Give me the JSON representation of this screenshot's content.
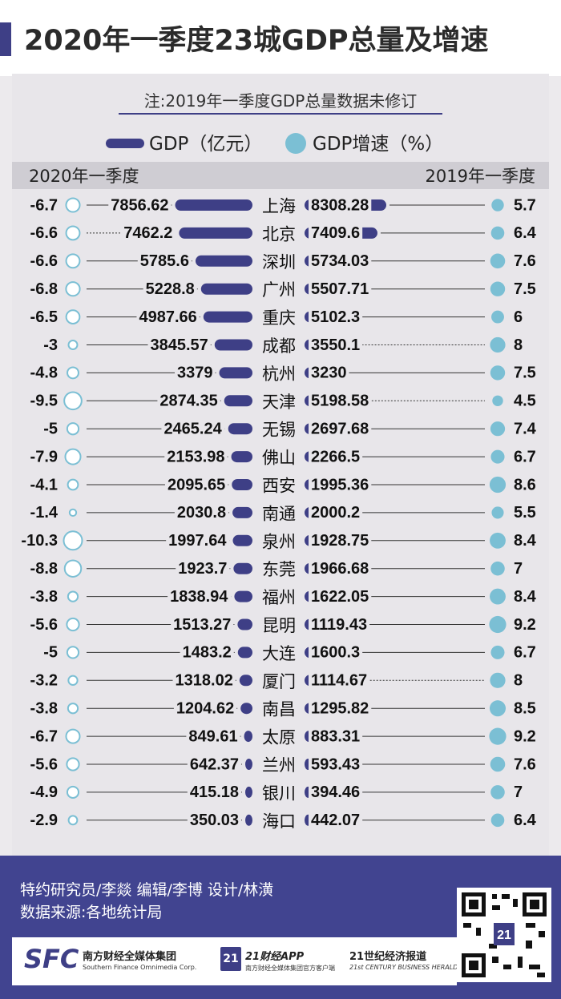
{
  "title": "2020年一季度23城GDP总量及增速",
  "note": "注:2019年一季度GDP总量数据未修订",
  "legend": {
    "gdp": "GDP（亿元）",
    "growth": "GDP增速（%）"
  },
  "header": {
    "left": "2020年一季度",
    "right": "2019年一季度"
  },
  "colors": {
    "bar": "#3e3f86",
    "dot_2019": "#7bbfd4",
    "ring_2020": "#7bbfd4"
  },
  "chart_data": {
    "type": "bar",
    "categories": [
      "上海",
      "北京",
      "深圳",
      "广州",
      "重庆",
      "成都",
      "杭州",
      "天津",
      "无锡",
      "佛山",
      "西安",
      "南通",
      "泉州",
      "东莞",
      "福州",
      "昆明",
      "大连",
      "厦门",
      "南昌",
      "太原",
      "兰州",
      "银川",
      "海口"
    ],
    "series": [
      {
        "name": "2020年一季度",
        "gdp": [
          7856.62,
          7462.2,
          5785.6,
          5228.8,
          4987.66,
          3845.57,
          3379,
          2874.35,
          2465.24,
          2153.98,
          2095.65,
          2030.8,
          1997.64,
          1923.7,
          1838.94,
          1513.27,
          1483.2,
          1318.02,
          1204.62,
          849.61,
          642.37,
          415.18,
          350.03
        ],
        "growth": [
          -6.7,
          -6.6,
          -6.6,
          -6.8,
          -6.5,
          -3,
          -4.8,
          -9.5,
          -5,
          -7.9,
          -4.1,
          -1.4,
          -10.3,
          -8.8,
          -3.8,
          -5.6,
          -5,
          -3.2,
          -3.8,
          -6.7,
          -5.6,
          -4.9,
          -2.9
        ],
        "gdp_labels": [
          "7856.62",
          "7462.2",
          "5785.6",
          "5228.8",
          "4987.66",
          "3845.57",
          "3379",
          "2874.35",
          "2465.24",
          "2153.98",
          "2095.65",
          "2030.8",
          "1997.64",
          "1923.7",
          "1838.94",
          "1513.27",
          "1483.2",
          "1318.02",
          "1204.62",
          "849.61",
          "642.37",
          "415.18",
          "350.03"
        ]
      },
      {
        "name": "2019年一季度",
        "gdp": [
          8308.28,
          7409.6,
          5734.03,
          5507.71,
          5102.3,
          3550.1,
          3230,
          5198.58,
          2697.68,
          2266.5,
          1995.36,
          2000.2,
          1928.75,
          1966.68,
          1622.05,
          1119.43,
          1600.3,
          1114.67,
          1295.82,
          883.31,
          593.43,
          394.46,
          442.07
        ],
        "growth": [
          5.7,
          6.4,
          7.6,
          7.5,
          6,
          8,
          7.5,
          4.5,
          7.4,
          6.7,
          8.6,
          5.5,
          8.4,
          7,
          8.4,
          9.2,
          6.7,
          8,
          8.5,
          9.2,
          7.6,
          7,
          6.4
        ],
        "gdp_labels": [
          "8308.28",
          "7409.6",
          "5734.03",
          "5507.71",
          "5102.3",
          "3550.1",
          "3230",
          "5198.58",
          "2697.68",
          "2266.5",
          "1995.36",
          "2000.2",
          "1928.75",
          "1966.68",
          "1622.05",
          "1119.43",
          "1600.3",
          "1114.67",
          "1295.82",
          "883.31",
          "593.43",
          "394.46",
          "442.07"
        ]
      }
    ],
    "unit_gdp": "亿元",
    "unit_growth": "%"
  },
  "footer": {
    "credits_line1": "特约研究员/李燚    编辑/李博    设计/林潢",
    "credits_line2": "数据来源:各地统计局",
    "logo1_mark": "SFC",
    "logo1_name": "南方财经全媒体集团",
    "logo1_en": "Southern Finance Omnimedia Corp.",
    "logo2_mark": "21",
    "logo2_name": "21财经APP",
    "logo2_sub": "南方财经全媒体集团官方客户端",
    "logo3_name": "21世纪经济报道",
    "logo3_en": "21st CENTURY BUSINESS HERALD"
  }
}
